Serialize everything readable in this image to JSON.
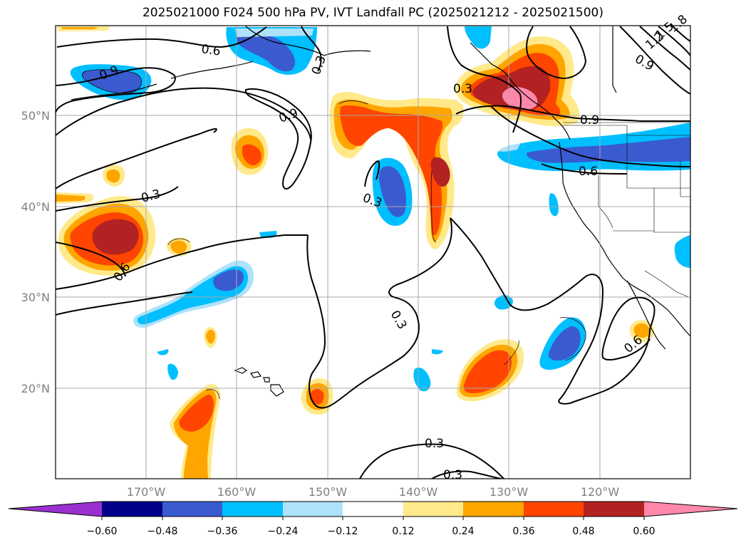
{
  "title": "2025021000 F024 500 hPa PV, IVT Landfall PC (2025021212 - 2025021500)",
  "lat_labels": [
    "50°N",
    "40°N",
    "30°N",
    "20°N"
  ],
  "lon_labels": [
    "170°W",
    "160°W",
    "150°W",
    "140°W",
    "130°W",
    "120°W"
  ],
  "contour_labels": [
    "0.6",
    "0.9",
    "0.3",
    "0.9",
    "0.3",
    "0.3",
    "0.6",
    "0.3",
    "0.6",
    "0.9",
    "0.3",
    "0.3",
    "0.3",
    "0.6",
    "0.9",
    "1.2",
    "1.5",
    "1.8"
  ],
  "colorbar": {
    "ticks": [
      "−0.60",
      "−0.48",
      "−0.36",
      "−0.24",
      "−0.12",
      "0.12",
      "0.24",
      "0.36",
      "0.48",
      "0.60"
    ],
    "colors": [
      "#9b30d0",
      "#00008b",
      "#3a5bd0",
      "#00bfff",
      "#aee2fa",
      "#ffffff",
      "#ffe98a",
      "#ffa500",
      "#ff4500",
      "#b22222",
      "#ff88aa"
    ]
  }
}
